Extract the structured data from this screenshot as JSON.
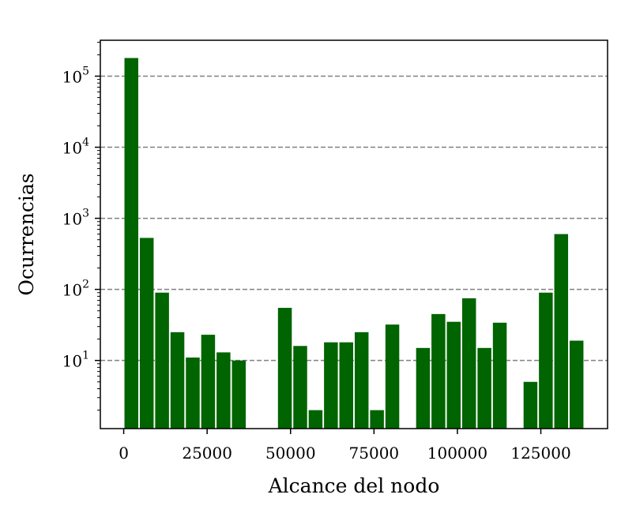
{
  "chart_data": {
    "type": "bar",
    "xlabel": "Alcance del nodo",
    "ylabel": "Ocurrencias",
    "y_scale": "log",
    "ylim": [
      1.1,
      320000
    ],
    "xlim": [
      -7000,
      145000
    ],
    "bin_width": 4600,
    "bar_color": "#006400",
    "grid": {
      "axis": "y",
      "style": "dashed",
      "color": "#808080"
    },
    "x_ticks": [
      {
        "value": 0,
        "label": "0"
      },
      {
        "value": 25000,
        "label": "25000"
      },
      {
        "value": 50000,
        "label": "50000"
      },
      {
        "value": 75000,
        "label": "75000"
      },
      {
        "value": 100000,
        "label": "100000"
      },
      {
        "value": 125000,
        "label": "125000"
      }
    ],
    "y_ticks": [
      {
        "value": 10,
        "base": "10",
        "exp": "1"
      },
      {
        "value": 100,
        "base": "10",
        "exp": "2"
      },
      {
        "value": 1000,
        "base": "10",
        "exp": "3"
      },
      {
        "value": 10000,
        "base": "10",
        "exp": "4"
      },
      {
        "value": 100000,
        "base": "10",
        "exp": "5"
      }
    ],
    "bins": [
      {
        "x": 2300,
        "value": 180000
      },
      {
        "x": 6900,
        "value": 530
      },
      {
        "x": 11500,
        "value": 90
      },
      {
        "x": 16100,
        "value": 25
      },
      {
        "x": 20700,
        "value": 11
      },
      {
        "x": 25300,
        "value": 23
      },
      {
        "x": 29900,
        "value": 13
      },
      {
        "x": 34500,
        "value": 10
      },
      {
        "x": 48300,
        "value": 55
      },
      {
        "x": 52900,
        "value": 16
      },
      {
        "x": 57500,
        "value": 2
      },
      {
        "x": 62100,
        "value": 18
      },
      {
        "x": 66700,
        "value": 18
      },
      {
        "x": 71300,
        "value": 25
      },
      {
        "x": 75900,
        "value": 2
      },
      {
        "x": 80500,
        "value": 32
      },
      {
        "x": 89700,
        "value": 15
      },
      {
        "x": 94300,
        "value": 45
      },
      {
        "x": 98900,
        "value": 35
      },
      {
        "x": 103500,
        "value": 75
      },
      {
        "x": 108100,
        "value": 15
      },
      {
        "x": 112700,
        "value": 34
      },
      {
        "x": 121900,
        "value": 5
      },
      {
        "x": 126500,
        "value": 90
      },
      {
        "x": 131100,
        "value": 600
      },
      {
        "x": 135700,
        "value": 19
      }
    ]
  }
}
